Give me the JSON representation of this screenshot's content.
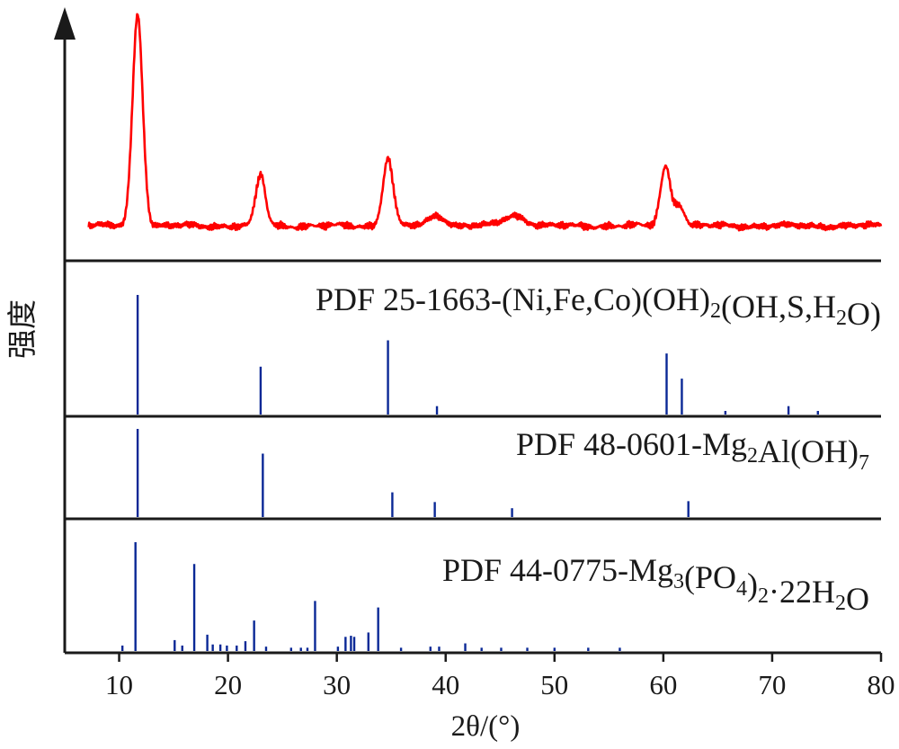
{
  "chart_data": {
    "type": "line",
    "xlabel": "2θ/(°)",
    "ylabel": "强度",
    "xlim": [
      5,
      80
    ],
    "xticks": [
      "10",
      "20",
      "30",
      "40",
      "50",
      "60",
      "70",
      "80"
    ],
    "measured_color": "#ff0000",
    "reference_color": "#0a2896",
    "measured": {
      "peaks": [
        {
          "x": 11.7,
          "h": 1.0,
          "w": 0.75
        },
        {
          "x": 23.0,
          "h": 0.24,
          "w": 0.7
        },
        {
          "x": 34.7,
          "h": 0.32,
          "w": 0.75
        },
        {
          "x": 39.2,
          "h": 0.05,
          "w": 1.2
        },
        {
          "x": 46.3,
          "h": 0.05,
          "w": 1.6
        },
        {
          "x": 60.2,
          "h": 0.28,
          "w": 0.75
        },
        {
          "x": 61.5,
          "h": 0.1,
          "w": 0.7
        }
      ]
    },
    "references": [
      {
        "label_parts": [
          {
            "text": "PDF 25-1663-(Ni,Fe,Co)(OH)"
          },
          {
            "text": "2",
            "sub": true
          },
          {
            "text": "(OH,S,H"
          },
          {
            "text": "2",
            "sub": true
          },
          {
            "text": "O)"
          }
        ],
        "lines": [
          [
            11.7,
            1.0
          ],
          [
            23.0,
            0.4
          ],
          [
            34.7,
            0.62
          ],
          [
            39.2,
            0.07
          ],
          [
            60.3,
            0.51
          ],
          [
            61.7,
            0.3
          ],
          [
            65.7,
            0.03
          ],
          [
            71.5,
            0.07
          ],
          [
            74.2,
            0.03
          ]
        ]
      },
      {
        "label_parts": [
          {
            "text": "PDF 48-0601-Mg"
          },
          {
            "text": "2",
            "sub": true
          },
          {
            "text": "Al(OH)"
          },
          {
            "text": "7",
            "sub": true
          }
        ],
        "lines": [
          [
            11.7,
            1.0
          ],
          [
            23.2,
            0.72
          ],
          [
            35.1,
            0.28
          ],
          [
            39.0,
            0.17
          ],
          [
            46.1,
            0.1
          ],
          [
            62.3,
            0.18
          ]
        ]
      },
      {
        "label_parts": [
          {
            "text": "PDF 44-0775-Mg"
          },
          {
            "text": "3",
            "sub": true
          },
          {
            "text": "(PO"
          },
          {
            "text": "4",
            "sub": true
          },
          {
            "text": ")"
          },
          {
            "text": "2",
            "sub": true
          },
          {
            "text": "·22H"
          },
          {
            "text": "2",
            "sub": true
          },
          {
            "text": "O"
          }
        ],
        "lines": [
          [
            10.3,
            0.05
          ],
          [
            11.5,
            1.0
          ],
          [
            15.1,
            0.1
          ],
          [
            15.8,
            0.05
          ],
          [
            16.9,
            0.8
          ],
          [
            18.1,
            0.15
          ],
          [
            18.6,
            0.06
          ],
          [
            19.3,
            0.06
          ],
          [
            19.9,
            0.05
          ],
          [
            20.8,
            0.05
          ],
          [
            21.6,
            0.09
          ],
          [
            22.4,
            0.28
          ],
          [
            23.5,
            0.04
          ],
          [
            25.8,
            0.03
          ],
          [
            26.7,
            0.03
          ],
          [
            27.3,
            0.03
          ],
          [
            28.0,
            0.46
          ],
          [
            30.1,
            0.04
          ],
          [
            30.8,
            0.13
          ],
          [
            31.3,
            0.14
          ],
          [
            31.6,
            0.13
          ],
          [
            32.9,
            0.17
          ],
          [
            33.8,
            0.4
          ],
          [
            35.9,
            0.03
          ],
          [
            38.6,
            0.04
          ],
          [
            39.4,
            0.04
          ],
          [
            41.8,
            0.07
          ],
          [
            43.3,
            0.03
          ],
          [
            45.1,
            0.03
          ],
          [
            47.5,
            0.03
          ],
          [
            50.0,
            0.03
          ],
          [
            53.1,
            0.03
          ],
          [
            56.0,
            0.03
          ]
        ]
      }
    ]
  }
}
